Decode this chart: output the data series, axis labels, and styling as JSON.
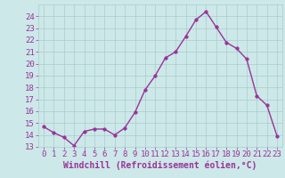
{
  "x": [
    0,
    1,
    2,
    3,
    4,
    5,
    6,
    7,
    8,
    9,
    10,
    11,
    12,
    13,
    14,
    15,
    16,
    17,
    18,
    19,
    20,
    21,
    22,
    23
  ],
  "y": [
    14.7,
    14.2,
    13.8,
    13.1,
    14.3,
    14.5,
    14.5,
    14.0,
    14.6,
    15.9,
    17.8,
    19.0,
    20.5,
    21.0,
    22.3,
    23.7,
    24.4,
    23.1,
    21.8,
    21.3,
    20.4,
    17.3,
    16.5,
    13.9
  ],
  "line_color": "#993399",
  "marker": "o",
  "marker_size": 2.5,
  "bg_color": "#cce8e8",
  "grid_color": "#aacccc",
  "xlabel": "Windchill (Refroidissement éolien,°C)",
  "ylim": [
    13,
    25
  ],
  "xlim": [
    -0.5,
    23.5
  ],
  "yticks": [
    13,
    14,
    15,
    16,
    17,
    18,
    19,
    20,
    21,
    22,
    23,
    24
  ],
  "xticks": [
    0,
    1,
    2,
    3,
    4,
    5,
    6,
    7,
    8,
    9,
    10,
    11,
    12,
    13,
    14,
    15,
    16,
    17,
    18,
    19,
    20,
    21,
    22,
    23
  ],
  "tick_color": "#993399",
  "label_color": "#993399",
  "font_size": 6.5,
  "xlabel_fontsize": 7,
  "linewidth": 1.0
}
